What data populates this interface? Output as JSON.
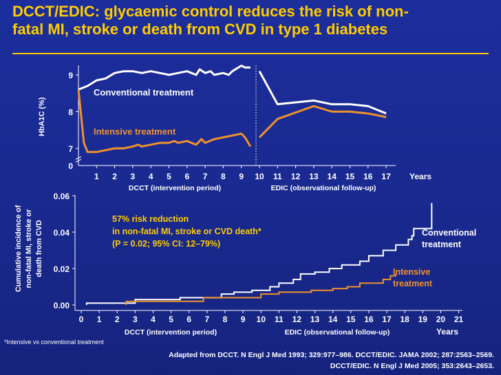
{
  "title": "DCCT/EDIC: glycaemic control reduces the risk of non-\nfatal MI, stroke or death from CVD in type 1 diabetes",
  "colors": {
    "background": "#1a2a92",
    "title": "#ffcc00",
    "conventional": "#ffffff",
    "intensive": "#f0922b",
    "annotation": "#ffcc00"
  },
  "chart_data": [
    {
      "type": "line",
      "ylabel": "HbA1C (%)",
      "y_ticks": [
        "9",
        "8",
        "7",
        "0"
      ],
      "x_ticks": [
        "1",
        "2",
        "3",
        "4",
        "5",
        "6",
        "7",
        "8",
        "9",
        "10",
        "11",
        "12",
        "13",
        "14",
        "15",
        "16",
        "17"
      ],
      "x_unit": "Years",
      "period_labels": [
        "DCCT (intervention period)",
        "EDIC (observational follow-up)"
      ],
      "axis_break": true,
      "series": [
        {
          "name": "Conventional treatment",
          "dcct": {
            "x": [
              0,
              0.5,
              1,
              1.5,
              2,
              2.5,
              3,
              3.5,
              4,
              4.5,
              5,
              5.5,
              6,
              6.5,
              6.7,
              7,
              7.3,
              7.5,
              8,
              8.3,
              8.5,
              9,
              9.2,
              9.5
            ],
            "y": [
              8.6,
              8.7,
              8.85,
              8.9,
              9.05,
              9.1,
              9.1,
              9.05,
              9.1,
              9.05,
              9.0,
              9.05,
              9.1,
              9.0,
              9.15,
              9.05,
              9.1,
              9.0,
              9.05,
              9.0,
              9.1,
              9.25,
              9.2,
              9.2
            ]
          },
          "edic": {
            "x": [
              10,
              11,
              13,
              14,
              15,
              16,
              17
            ],
            "y": [
              9.1,
              8.2,
              8.3,
              8.2,
              8.2,
              8.15,
              7.95
            ]
          }
        },
        {
          "name": "Intensive treatment",
          "dcct": {
            "x": [
              0,
              0.3,
              0.5,
              1,
              1.5,
              2,
              2.5,
              3,
              3.3,
              3.5,
              4,
              4.5,
              5,
              5.3,
              5.5,
              6,
              6.5,
              6.8,
              7,
              7.5,
              8,
              8.5,
              9,
              9.2,
              9.5
            ],
            "y": [
              8.6,
              7.15,
              6.9,
              6.9,
              6.95,
              7.0,
              7.0,
              7.05,
              7.1,
              7.05,
              7.1,
              7.15,
              7.15,
              7.2,
              7.15,
              7.2,
              7.1,
              7.25,
              7.15,
              7.25,
              7.3,
              7.35,
              7.4,
              7.3,
              7.05
            ]
          },
          "edic": {
            "x": [
              10,
              11,
              13,
              14,
              15,
              16,
              17
            ],
            "y": [
              7.3,
              7.8,
              8.15,
              8.0,
              8.0,
              7.95,
              7.85
            ]
          }
        }
      ]
    },
    {
      "type": "line",
      "step": true,
      "ylabel": "Cumulative incidence of non-fatal MI, stroke or death from CVD",
      "y_ticks": [
        "0.06",
        "0.04",
        "0.02",
        "0.00"
      ],
      "x_ticks": [
        "0",
        "1",
        "2",
        "3",
        "4",
        "5",
        "6",
        "7",
        "8",
        "9",
        "10",
        "11",
        "12",
        "13",
        "14",
        "15",
        "16",
        "17",
        "18",
        "19",
        "20",
        "21"
      ],
      "x_unit": "Years",
      "period_labels": [
        "DCCT (intervention period)",
        "EDIC (observational follow-up)"
      ],
      "annotation": [
        "57% risk reduction",
        "in non-fatal MI, stroke or CVD death*",
        "(P = 0.02; 95% CI: 12–79%)"
      ],
      "series": [
        {
          "name": "Conventional treatment",
          "x": [
            0.3,
            3,
            5.5,
            7.8,
            8.5,
            9.5,
            10.5,
            11,
            11.8,
            12.2,
            13,
            13.8,
            14.5,
            15.5,
            16,
            16.8,
            17.5,
            18.2,
            18.4,
            18.5,
            19.5,
            19.5
          ],
          "y": [
            0.001,
            0.003,
            0.004,
            0.006,
            0.007,
            0.008,
            0.01,
            0.012,
            0.014,
            0.017,
            0.018,
            0.02,
            0.022,
            0.024,
            0.027,
            0.03,
            0.033,
            0.036,
            0.038,
            0.042,
            0.048,
            0.056
          ]
        },
        {
          "name": "Intensive treatment",
          "x": [
            2.5,
            6.8,
            10,
            11,
            12.8,
            14,
            14.8,
            15.5,
            16.8,
            17.2,
            17.5
          ],
          "y": [
            0.002,
            0.004,
            0.006,
            0.007,
            0.008,
            0.009,
            0.01,
            0.012,
            0.014,
            0.016,
            0.017
          ]
        }
      ],
      "series_labels": {
        "conventional": "Conventional\ntreatment",
        "intensive": "Intensive\ntreatment"
      }
    }
  ],
  "footnote": "*Intensive vs conventional treatment",
  "source_lines": [
    "Adapted from DCCT. N Engl J Med 1993; 329:977–986. DCCT/EDIC. JAMA 2002; 287:2563–2569.",
    "DCCT/EDIC. N Engl J Med 2005; 353:2643–2653."
  ]
}
